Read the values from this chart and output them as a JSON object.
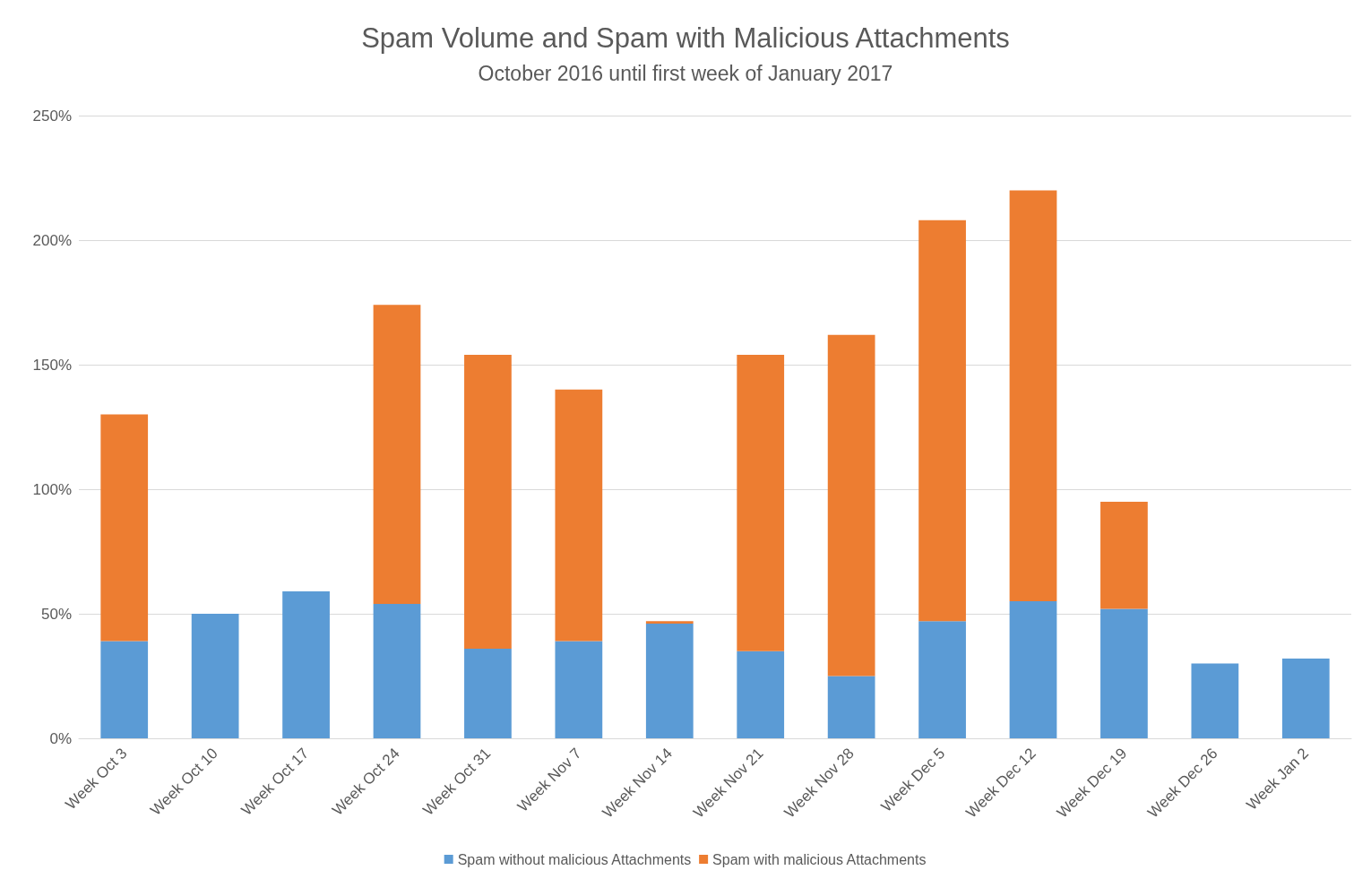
{
  "chart_data": {
    "type": "bar",
    "title": "Spam Volume and Spam with Malicious Attachments",
    "subtitle": "October 2016 until first week of January 2017",
    "categories": [
      "Week Oct 3",
      "Week Oct 10",
      "Week Oct 17",
      "Week Oct 24",
      "Week Oct 31",
      "Week Nov 7",
      "Week Nov 14",
      "Week Nov 21",
      "Week Nov 28",
      "Week Dec 5",
      "Week Dec 12",
      "Week Dec 19",
      "Week Dec 26",
      "Week Jan 2"
    ],
    "series": [
      {
        "name": "Spam without malicious Attachments",
        "color": "#5b9bd5",
        "values": [
          39,
          50,
          59,
          54,
          36,
          39,
          46,
          35,
          25,
          47,
          55,
          52,
          30,
          32
        ]
      },
      {
        "name": "Spam with malicious Attachments",
        "color": "#ed7d31",
        "values": [
          91,
          0,
          0,
          120,
          118,
          101,
          1,
          119,
          137,
          161,
          165,
          43,
          0,
          0
        ]
      }
    ],
    "stacked": true,
    "ylim": [
      0,
      250
    ],
    "yticks": [
      {
        "value": 0,
        "label": "0%"
      },
      {
        "value": 50,
        "label": "50%"
      },
      {
        "value": 100,
        "label": "100%"
      },
      {
        "value": 150,
        "label": "150%"
      },
      {
        "value": 200,
        "label": "200%"
      },
      {
        "value": 250,
        "label": "250%"
      }
    ],
    "grid": "y",
    "legend": "bottom"
  }
}
